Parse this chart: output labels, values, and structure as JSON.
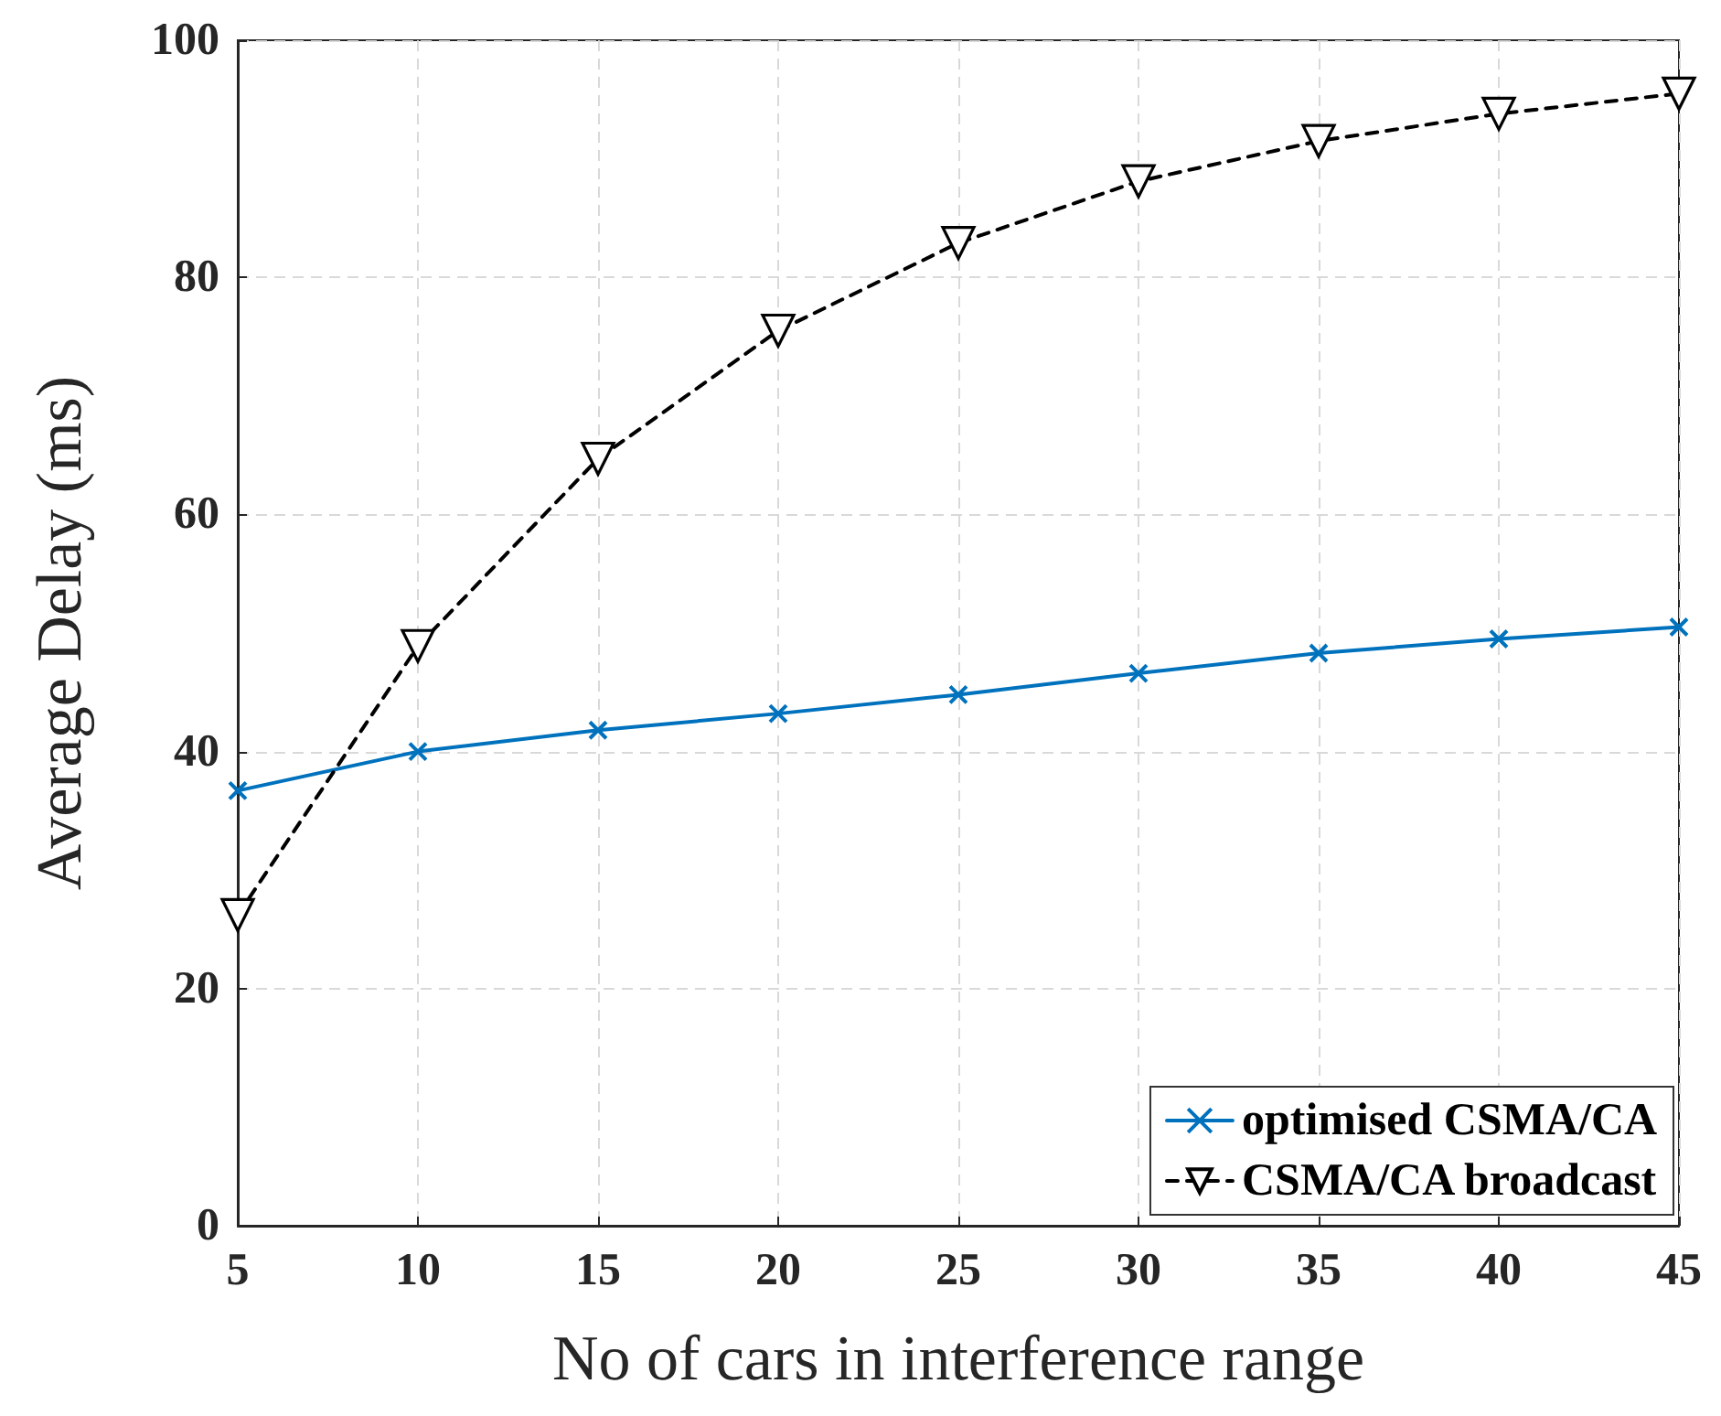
{
  "chart_data": {
    "type": "line",
    "xlabel": "No of cars in interference range",
    "ylabel": "Average Delay (ms)",
    "x": [
      5,
      10,
      15,
      20,
      25,
      30,
      35,
      40,
      45
    ],
    "series": [
      {
        "name": "optimised CSMA/CA",
        "color": "#0072bd",
        "marker": "cross",
        "line_style": "solid",
        "values": [
          36.7,
          40.0,
          41.8,
          43.2,
          44.8,
          46.6,
          48.3,
          49.5,
          50.5
        ]
      },
      {
        "name": "CSMA/CA broadcast",
        "color": "#000000",
        "marker": "triangle",
        "line_style": "dashed",
        "values": [
          26.2,
          48.9,
          64.7,
          75.5,
          82.9,
          88.1,
          91.5,
          93.8,
          95.5
        ]
      }
    ],
    "xlim": [
      5,
      45
    ],
    "xticks": [
      5,
      10,
      15,
      20,
      25,
      30,
      35,
      40,
      45
    ],
    "ylim": [
      0,
      100
    ],
    "yticks": [
      0,
      20,
      40,
      60,
      80,
      100
    ],
    "grid": true,
    "legend": "bottom right"
  }
}
